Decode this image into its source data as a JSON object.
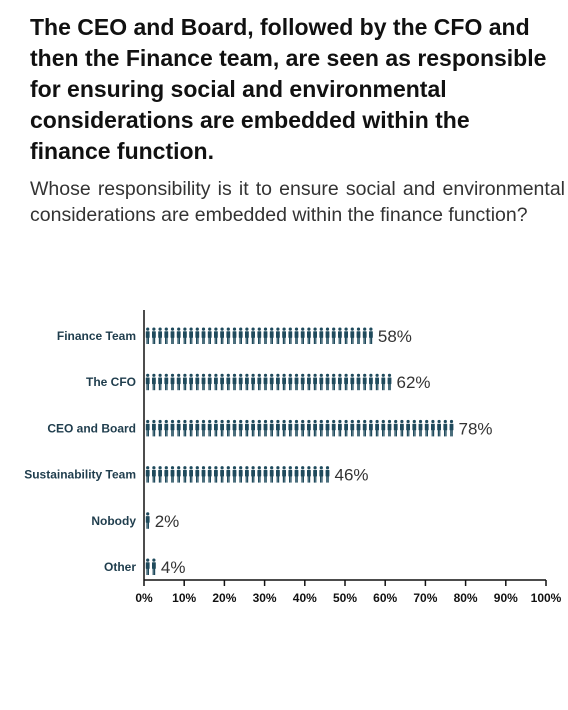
{
  "headline": "The CEO and Board, followed by the CFO and then the Finance team, are seen as responsible for ensuring social and environmental considerations are embedded within the finance function.",
  "question": "Whose responsibility is it to ensure social and environmental considerations are embedded within the finance function?",
  "colors": {
    "pictogram": "#1f4a5c",
    "axis": "#111111",
    "text": "#333333"
  },
  "icon": "person-pictogram-icon",
  "chart_data": {
    "type": "bar",
    "categories": [
      "Finance Team",
      "The CFO",
      "CEO and Board",
      "Sustainability Team",
      "Nobody",
      "Other"
    ],
    "values": [
      58,
      62,
      78,
      46,
      2,
      4
    ],
    "value_labels": [
      "58%",
      "62%",
      "78%",
      "46%",
      "2%",
      "4%"
    ],
    "xlim": [
      0,
      100
    ],
    "ticks": [
      0,
      10,
      20,
      30,
      40,
      50,
      60,
      70,
      80,
      90,
      100
    ],
    "tick_labels": [
      "0%",
      "10%",
      "20%",
      "30%",
      "40%",
      "50%",
      "60%",
      "70%",
      "80%",
      "90%",
      "100%"
    ],
    "orientation": "horizontal",
    "grid": false
  }
}
